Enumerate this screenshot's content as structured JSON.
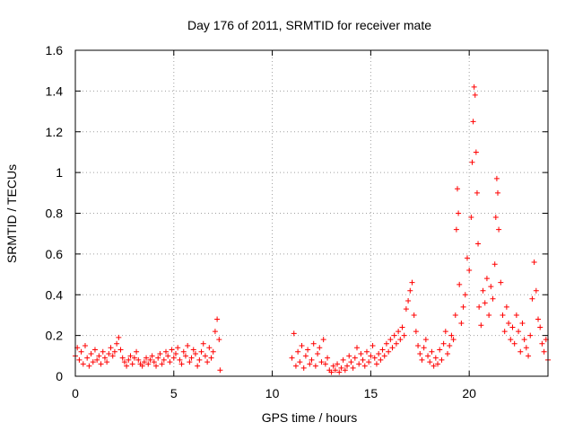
{
  "chart_data": {
    "type": "scatter",
    "title": "Day 176 of 2011, SRMTID for receiver mate",
    "xlabel": "GPS time / hours",
    "ylabel": "SRMTID / TECUs",
    "xlim": [
      0,
      24
    ],
    "ylim": [
      0,
      1.6
    ],
    "xticks": [
      0,
      5,
      10,
      15,
      20
    ],
    "yticks": [
      0,
      0.2,
      0.4,
      0.6,
      0.8,
      1,
      1.2,
      1.4,
      1.6
    ],
    "xtick_labels": [
      "0",
      "5",
      "10",
      "15",
      "20"
    ],
    "ytick_labels": [
      "0",
      "0.2",
      "0.4",
      "0.6",
      "0.8",
      "1",
      "1.2",
      "1.4",
      "1.6"
    ],
    "grid": true,
    "marker": "+",
    "color": "#ff0000",
    "series": [
      {
        "name": "SRMTID",
        "points": [
          [
            0.0,
            0.1
          ],
          [
            0.1,
            0.14
          ],
          [
            0.2,
            0.08
          ],
          [
            0.3,
            0.12
          ],
          [
            0.4,
            0.06
          ],
          [
            0.5,
            0.15
          ],
          [
            0.6,
            0.09
          ],
          [
            0.7,
            0.05
          ],
          [
            0.8,
            0.11
          ],
          [
            0.9,
            0.07
          ],
          [
            1.0,
            0.13
          ],
          [
            1.1,
            0.08
          ],
          [
            1.2,
            0.1
          ],
          [
            1.3,
            0.06
          ],
          [
            1.4,
            0.12
          ],
          [
            1.5,
            0.09
          ],
          [
            1.6,
            0.07
          ],
          [
            1.7,
            0.11
          ],
          [
            1.8,
            0.14
          ],
          [
            1.9,
            0.1
          ],
          [
            2.0,
            0.12
          ],
          [
            2.1,
            0.16
          ],
          [
            2.2,
            0.19
          ],
          [
            2.3,
            0.13
          ],
          [
            2.4,
            0.09
          ],
          [
            2.5,
            0.07
          ],
          [
            2.6,
            0.05
          ],
          [
            2.7,
            0.08
          ],
          [
            2.8,
            0.1
          ],
          [
            2.9,
            0.06
          ],
          [
            3.0,
            0.09
          ],
          [
            3.1,
            0.12
          ],
          [
            3.2,
            0.08
          ],
          [
            3.3,
            0.06
          ],
          [
            3.4,
            0.05
          ],
          [
            3.5,
            0.07
          ],
          [
            3.6,
            0.09
          ],
          [
            3.7,
            0.06
          ],
          [
            3.8,
            0.08
          ],
          [
            3.9,
            0.1
          ],
          [
            4.0,
            0.07
          ],
          [
            4.1,
            0.05
          ],
          [
            4.2,
            0.09
          ],
          [
            4.3,
            0.11
          ],
          [
            4.4,
            0.06
          ],
          [
            4.5,
            0.08
          ],
          [
            4.6,
            0.12
          ],
          [
            4.7,
            0.1
          ],
          [
            4.8,
            0.07
          ],
          [
            4.9,
            0.13
          ],
          [
            5.0,
            0.09
          ],
          [
            5.1,
            0.11
          ],
          [
            5.2,
            0.14
          ],
          [
            5.3,
            0.08
          ],
          [
            5.4,
            0.06
          ],
          [
            5.5,
            0.12
          ],
          [
            5.6,
            0.1
          ],
          [
            5.7,
            0.15
          ],
          [
            5.8,
            0.07
          ],
          [
            5.9,
            0.09
          ],
          [
            6.0,
            0.13
          ],
          [
            6.1,
            0.11
          ],
          [
            6.2,
            0.05
          ],
          [
            6.3,
            0.08
          ],
          [
            6.4,
            0.12
          ],
          [
            6.5,
            0.16
          ],
          [
            6.6,
            0.1
          ],
          [
            6.7,
            0.07
          ],
          [
            6.8,
            0.14
          ],
          [
            6.9,
            0.09
          ],
          [
            7.0,
            0.12
          ],
          [
            7.1,
            0.22
          ],
          [
            7.2,
            0.28
          ],
          [
            7.3,
            0.18
          ],
          [
            7.35,
            0.03
          ],
          [
            11.0,
            0.09
          ],
          [
            11.1,
            0.21
          ],
          [
            11.2,
            0.05
          ],
          [
            11.3,
            0.12
          ],
          [
            11.4,
            0.07
          ],
          [
            11.5,
            0.15
          ],
          [
            11.6,
            0.04
          ],
          [
            11.7,
            0.1
          ],
          [
            11.8,
            0.13
          ],
          [
            11.9,
            0.06
          ],
          [
            12.0,
            0.08
          ],
          [
            12.1,
            0.16
          ],
          [
            12.2,
            0.05
          ],
          [
            12.3,
            0.11
          ],
          [
            12.4,
            0.14
          ],
          [
            12.5,
            0.07
          ],
          [
            12.6,
            0.18
          ],
          [
            12.7,
            0.06
          ],
          [
            12.8,
            0.09
          ],
          [
            12.9,
            0.03
          ],
          [
            13.0,
            0.02
          ],
          [
            13.1,
            0.05
          ],
          [
            13.2,
            0.03
          ],
          [
            13.3,
            0.06
          ],
          [
            13.4,
            0.02
          ],
          [
            13.5,
            0.04
          ],
          [
            13.6,
            0.08
          ],
          [
            13.7,
            0.03
          ],
          [
            13.8,
            0.05
          ],
          [
            13.9,
            0.1
          ],
          [
            14.0,
            0.07
          ],
          [
            14.1,
            0.04
          ],
          [
            14.2,
            0.09
          ],
          [
            14.3,
            0.14
          ],
          [
            14.4,
            0.06
          ],
          [
            14.5,
            0.11
          ],
          [
            14.6,
            0.08
          ],
          [
            14.7,
            0.05
          ],
          [
            14.8,
            0.12
          ],
          [
            14.9,
            0.07
          ],
          [
            15.0,
            0.1
          ],
          [
            15.1,
            0.15
          ],
          [
            15.2,
            0.09
          ],
          [
            15.3,
            0.06
          ],
          [
            15.4,
            0.11
          ],
          [
            15.5,
            0.08
          ],
          [
            15.6,
            0.13
          ],
          [
            15.7,
            0.1
          ],
          [
            15.8,
            0.16
          ],
          [
            15.9,
            0.12
          ],
          [
            16.0,
            0.18
          ],
          [
            16.1,
            0.14
          ],
          [
            16.2,
            0.2
          ],
          [
            16.3,
            0.16
          ],
          [
            16.4,
            0.22
          ],
          [
            16.5,
            0.18
          ],
          [
            16.6,
            0.24
          ],
          [
            16.7,
            0.2
          ],
          [
            16.8,
            0.33
          ],
          [
            16.9,
            0.37
          ],
          [
            17.0,
            0.42
          ],
          [
            17.1,
            0.46
          ],
          [
            17.2,
            0.3
          ],
          [
            17.3,
            0.22
          ],
          [
            17.4,
            0.15
          ],
          [
            17.5,
            0.11
          ],
          [
            17.6,
            0.08
          ],
          [
            17.7,
            0.14
          ],
          [
            17.8,
            0.18
          ],
          [
            17.9,
            0.1
          ],
          [
            18.0,
            0.07
          ],
          [
            18.1,
            0.12
          ],
          [
            18.2,
            0.05
          ],
          [
            18.3,
            0.09
          ],
          [
            18.4,
            0.06
          ],
          [
            18.5,
            0.13
          ],
          [
            18.6,
            0.08
          ],
          [
            18.7,
            0.16
          ],
          [
            18.8,
            0.22
          ],
          [
            18.9,
            0.11
          ],
          [
            19.0,
            0.15
          ],
          [
            19.1,
            0.2
          ],
          [
            19.2,
            0.18
          ],
          [
            19.3,
            0.3
          ],
          [
            19.35,
            0.72
          ],
          [
            19.4,
            0.92
          ],
          [
            19.45,
            0.8
          ],
          [
            19.5,
            0.45
          ],
          [
            19.6,
            0.26
          ],
          [
            19.7,
            0.34
          ],
          [
            19.8,
            0.4
          ],
          [
            19.9,
            0.58
          ],
          [
            20.0,
            0.52
          ],
          [
            20.1,
            0.78
          ],
          [
            20.15,
            1.05
          ],
          [
            20.2,
            1.25
          ],
          [
            20.25,
            1.42
          ],
          [
            20.3,
            1.38
          ],
          [
            20.35,
            1.1
          ],
          [
            20.4,
            0.9
          ],
          [
            20.45,
            0.65
          ],
          [
            20.5,
            0.34
          ],
          [
            20.6,
            0.25
          ],
          [
            20.7,
            0.42
          ],
          [
            20.8,
            0.36
          ],
          [
            20.9,
            0.48
          ],
          [
            21.0,
            0.3
          ],
          [
            21.1,
            0.44
          ],
          [
            21.2,
            0.38
          ],
          [
            21.3,
            0.55
          ],
          [
            21.35,
            0.78
          ],
          [
            21.4,
            0.97
          ],
          [
            21.45,
            0.9
          ],
          [
            21.5,
            0.72
          ],
          [
            21.6,
            0.46
          ],
          [
            21.7,
            0.3
          ],
          [
            21.8,
            0.22
          ],
          [
            21.9,
            0.34
          ],
          [
            22.0,
            0.26
          ],
          [
            22.1,
            0.18
          ],
          [
            22.2,
            0.24
          ],
          [
            22.3,
            0.16
          ],
          [
            22.4,
            0.3
          ],
          [
            22.5,
            0.22
          ],
          [
            22.6,
            0.12
          ],
          [
            22.7,
            0.26
          ],
          [
            22.8,
            0.18
          ],
          [
            22.9,
            0.14
          ],
          [
            23.0,
            0.1
          ],
          [
            23.1,
            0.2
          ],
          [
            23.2,
            0.38
          ],
          [
            23.3,
            0.56
          ],
          [
            23.4,
            0.42
          ],
          [
            23.5,
            0.28
          ],
          [
            23.6,
            0.24
          ],
          [
            23.7,
            0.16
          ],
          [
            23.8,
            0.12
          ],
          [
            23.9,
            0.18
          ],
          [
            24.0,
            0.08
          ]
        ]
      }
    ]
  }
}
